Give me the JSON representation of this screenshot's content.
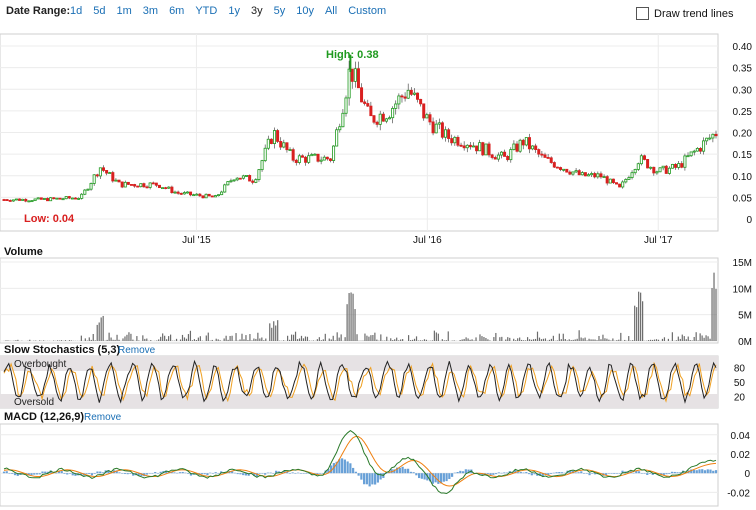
{
  "toolbar": {
    "date_range_label": "Date Range:",
    "ranges": [
      "1d",
      "5d",
      "1m",
      "3m",
      "6m",
      "YTD",
      "1y",
      "3y",
      "5y",
      "10y",
      "All",
      "Custom"
    ],
    "active_range": "3y",
    "draw_trend_label": "Draw trend lines",
    "draw_trend_checked": false
  },
  "price_panel": {
    "high_label": "High: 0.38",
    "low_label": "Low: 0.04",
    "y_ticks": [
      "0.40",
      "0.35",
      "0.30",
      "0.25",
      "0.20",
      "0.15",
      "0.10",
      "0.05",
      "0"
    ],
    "x_ticks": [
      "Jul '15",
      "Jul '16",
      "Jul '17"
    ],
    "up_color": "#1f9a1f",
    "down_color": "#d92020"
  },
  "volume_panel": {
    "title": "Volume",
    "y_ticks": [
      "15M",
      "10M",
      "5M",
      "0M"
    ],
    "bar_color": "#6b6b6b"
  },
  "stoch_panel": {
    "title": "Slow Stochastics (5,3)",
    "remove_label": "Remove",
    "overbought_label": "Overbought",
    "oversold_label": "Oversold",
    "y_ticks": [
      "80",
      "50",
      "20"
    ],
    "k_color": "#222222",
    "d_color": "#f0a020"
  },
  "macd_panel": {
    "title": "MACD (12,26,9)",
    "remove_label": "Remove",
    "y_ticks": [
      "0.04",
      "0.02",
      "0",
      "-0.02"
    ],
    "macd_color": "#2a7a2a",
    "signal_color": "#f08010",
    "hist_color": "#4d8fd0"
  },
  "chart_data": {
    "type": "candlestick",
    "x_range": [
      "2014-09",
      "2017-10"
    ],
    "price_range": [
      0,
      0.4
    ],
    "price_anchors": [
      {
        "date": "2014-09",
        "close": 0.045
      },
      {
        "date": "2014-11",
        "close": 0.045
      },
      {
        "date": "2015-01",
        "close": 0.05
      },
      {
        "date": "2015-02",
        "close": 0.12
      },
      {
        "date": "2015-03",
        "close": 0.08
      },
      {
        "date": "2015-05",
        "close": 0.08
      },
      {
        "date": "2015-06",
        "close": 0.06
      },
      {
        "date": "2015-08",
        "close": 0.05
      },
      {
        "date": "2015-09",
        "close": 0.1
      },
      {
        "date": "2015-10",
        "close": 0.09
      },
      {
        "date": "2015-11",
        "close": 0.2
      },
      {
        "date": "2015-12",
        "close": 0.14
      },
      {
        "date": "2016-02",
        "close": 0.14
      },
      {
        "date": "2016-03",
        "close": 0.35
      },
      {
        "date": "2016-04",
        "close": 0.23
      },
      {
        "date": "2016-05",
        "close": 0.25
      },
      {
        "date": "2016-06",
        "close": 0.3
      },
      {
        "date": "2016-07",
        "close": 0.23
      },
      {
        "date": "2016-08",
        "close": 0.19
      },
      {
        "date": "2016-09",
        "close": 0.18
      },
      {
        "date": "2016-10",
        "close": 0.16
      },
      {
        "date": "2016-11",
        "close": 0.14
      },
      {
        "date": "2016-12",
        "close": 0.18
      },
      {
        "date": "2017-01",
        "close": 0.14
      },
      {
        "date": "2017-02",
        "close": 0.12
      },
      {
        "date": "2017-03",
        "close": 0.1
      },
      {
        "date": "2017-04",
        "close": 0.1
      },
      {
        "date": "2017-05",
        "close": 0.07
      },
      {
        "date": "2017-06",
        "close": 0.14
      },
      {
        "date": "2017-07",
        "close": 0.11
      },
      {
        "date": "2017-08",
        "close": 0.12
      },
      {
        "date": "2017-09",
        "close": 0.16
      },
      {
        "date": "2017-10",
        "close": 0.2
      }
    ],
    "high": 0.38,
    "low": 0.04,
    "volume_range": [
      0,
      15000000
    ],
    "volume_spikes": [
      {
        "date": "2015-02",
        "volume": 5000000
      },
      {
        "date": "2015-11",
        "volume": 4000000
      },
      {
        "date": "2016-03",
        "volume": 10000000
      },
      {
        "date": "2017-06",
        "volume": 10000000
      },
      {
        "date": "2017-10",
        "volume": 15000000
      }
    ],
    "stochastics": {
      "range": [
        0,
        100
      ],
      "overbought": 80,
      "oversold": 20
    },
    "macd": {
      "range": [
        -0.03,
        0.045
      ],
      "peaks": [
        {
          "date": "2016-03",
          "macd": 0.04,
          "signal": 0.035
        },
        {
          "date": "2016-06",
          "macd": 0.012,
          "signal": 0.01
        },
        {
          "date": "2016-08",
          "macd": -0.018,
          "signal": -0.012
        },
        {
          "date": "2017-10",
          "macd": 0.015,
          "signal": 0.012
        }
      ]
    }
  }
}
